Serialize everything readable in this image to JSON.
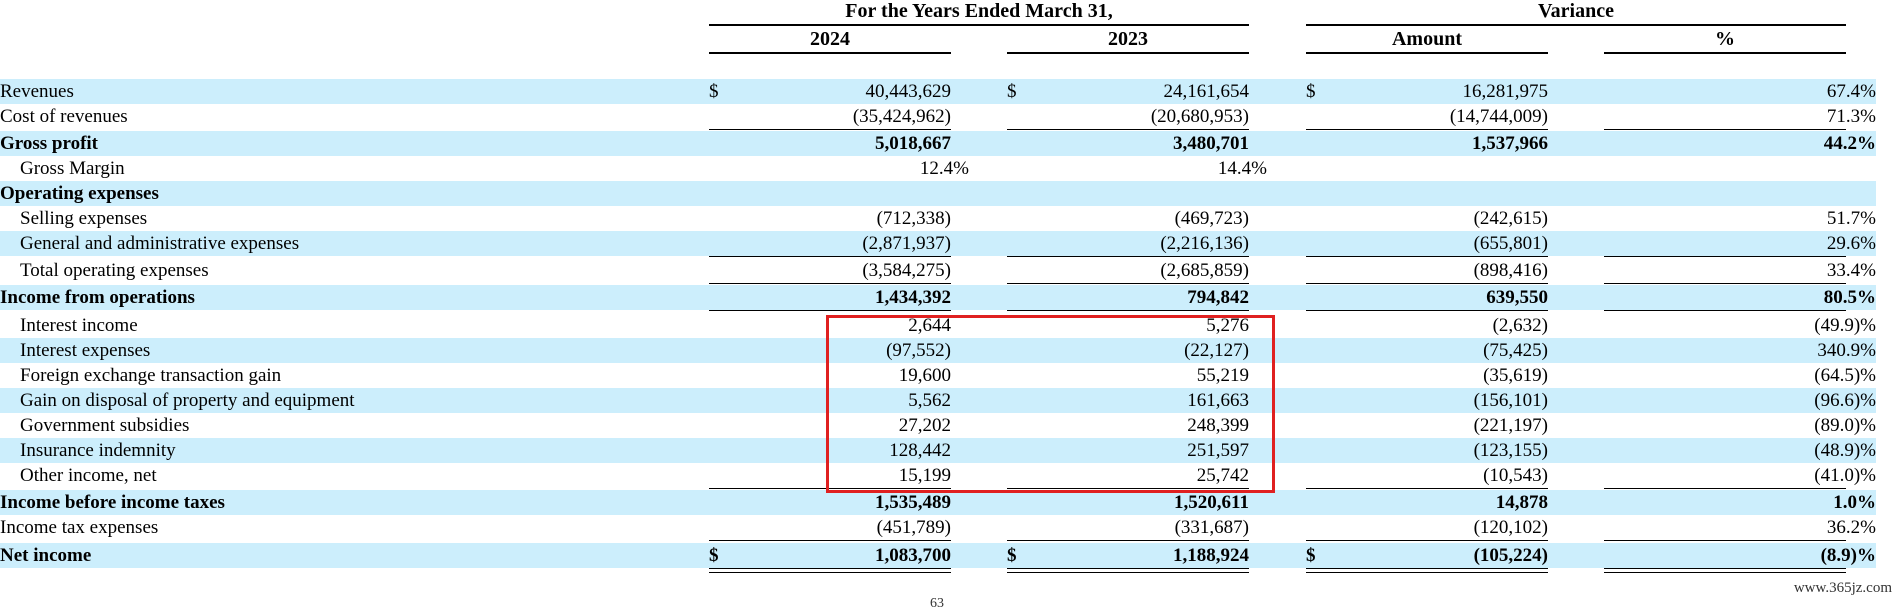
{
  "header": {
    "period_title": "For the Years Ended March 31,",
    "variance_title": "Variance",
    "col_2024": "2024",
    "col_2023": "2023",
    "col_amount": "Amount",
    "col_pct": "%"
  },
  "rows": [
    {
      "label": "Revenues",
      "c2024": "40,443,629",
      "c2023": "24,161,654",
      "amount": "16,281,975",
      "pct": "67.4%"
    },
    {
      "label": "Cost of revenues",
      "c2024": "(35,424,962)",
      "c2023": "(20,680,953)",
      "amount": "(14,744,009)",
      "pct": "71.3%"
    },
    {
      "label": "Gross profit",
      "c2024": "5,018,667",
      "c2023": "3,480,701",
      "amount": "1,537,966",
      "pct": "44.2%"
    },
    {
      "label": "Gross Margin",
      "c2024": "12.4%",
      "c2023": "14.4%",
      "amount": "",
      "pct": ""
    },
    {
      "label": "Operating expenses",
      "c2024": "",
      "c2023": "",
      "amount": "",
      "pct": ""
    },
    {
      "label": "Selling expenses",
      "c2024": "(712,338)",
      "c2023": "(469,723)",
      "amount": "(242,615)",
      "pct": "51.7%"
    },
    {
      "label": "General and administrative expenses",
      "c2024": "(2,871,937)",
      "c2023": "(2,216,136)",
      "amount": "(655,801)",
      "pct": "29.6%"
    },
    {
      "label": "Total operating expenses",
      "c2024": "(3,584,275)",
      "c2023": "(2,685,859)",
      "amount": "(898,416)",
      "pct": "33.4%"
    },
    {
      "label": "Income from operations",
      "c2024": "1,434,392",
      "c2023": "794,842",
      "amount": "639,550",
      "pct": "80.5%"
    },
    {
      "label": "Interest income",
      "c2024": "2,644",
      "c2023": "5,276",
      "amount": "(2,632)",
      "pct": "(49.9)%"
    },
    {
      "label": "Interest expenses",
      "c2024": "(97,552)",
      "c2023": "(22,127)",
      "amount": "(75,425)",
      "pct": "340.9%"
    },
    {
      "label": "Foreign exchange transaction gain",
      "c2024": "19,600",
      "c2023": "55,219",
      "amount": "(35,619)",
      "pct": "(64.5)%"
    },
    {
      "label": "Gain on disposal of property and equipment",
      "c2024": "5,562",
      "c2023": "161,663",
      "amount": "(156,101)",
      "pct": "(96.6)%"
    },
    {
      "label": "Government subsidies",
      "c2024": "27,202",
      "c2023": "248,399",
      "amount": "(221,197)",
      "pct": "(89.0)%"
    },
    {
      "label": "Insurance indemnity",
      "c2024": "128,442",
      "c2023": "251,597",
      "amount": "(123,155)",
      "pct": "(48.9)%"
    },
    {
      "label": "Other income, net",
      "c2024": "15,199",
      "c2023": "25,742",
      "amount": "(10,543)",
      "pct": "(41.0)%"
    },
    {
      "label": "Income before income taxes",
      "c2024": "1,535,489",
      "c2023": "1,520,611",
      "amount": "14,878",
      "pct": "1.0%"
    },
    {
      "label": "Income tax expenses",
      "c2024": "(451,789)",
      "c2023": "(331,687)",
      "amount": "(120,102)",
      "pct": "36.2%"
    },
    {
      "label": "Net income",
      "c2024": "1,083,700",
      "c2023": "1,188,924",
      "amount": "(105,224)",
      "pct": "(8.9)%"
    }
  ],
  "currency_symbol": "$",
  "page_number": "63",
  "watermark": "www.365jz.com"
}
